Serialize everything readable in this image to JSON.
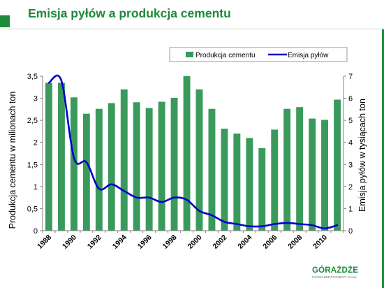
{
  "slide": {
    "title": "Emisja pyłów a produkcja cementu"
  },
  "colors": {
    "accent": "#1e8a3a",
    "bar": "#3a9a5c",
    "line": "#0000cc",
    "grid": "#c8c8c8"
  },
  "logo": {
    "name": "GÓRAŻDŻE",
    "sub": "HEIDELBERGCEMENT Group"
  },
  "chart_data": {
    "type": "bar",
    "title": "",
    "x": [
      1988,
      1989,
      1990,
      1991,
      1992,
      1993,
      1994,
      1995,
      1996,
      1997,
      1998,
      1999,
      2000,
      2001,
      2002,
      2003,
      2004,
      2005,
      2006,
      2007,
      2008,
      2009,
      2010,
      2011
    ],
    "x_tick_labels": [
      "1988",
      "1990",
      "1992",
      "1994",
      "1996",
      "1998",
      "2000",
      "2002",
      "2004",
      "2006",
      "2008",
      "2010"
    ],
    "series": [
      {
        "name": "Produkcja cementu",
        "type": "bar",
        "axis": "left",
        "values": [
          3.35,
          3.35,
          3.02,
          2.65,
          2.76,
          2.89,
          3.2,
          2.91,
          2.78,
          2.92,
          3.01,
          3.5,
          3.2,
          2.76,
          2.31,
          2.2,
          2.1,
          1.87,
          2.29,
          2.76,
          2.8,
          2.54,
          2.51,
          2.97
        ]
      },
      {
        "name": "Emisja pyłów",
        "type": "line",
        "axis": "right",
        "values": [
          6.7,
          6.8,
          3.3,
          3.1,
          1.9,
          2.1,
          1.8,
          1.5,
          1.5,
          1.3,
          1.5,
          1.4,
          0.9,
          0.7,
          0.4,
          0.3,
          0.2,
          0.2,
          0.3,
          0.35,
          0.3,
          0.25,
          0.1,
          0.25
        ]
      }
    ],
    "ylabel": "Produkcja cementu w milionach ton",
    "y2label": "Emisja pyłów w tysiącach ton",
    "ylim": [
      0,
      3.5
    ],
    "y2lim": [
      0,
      7
    ],
    "yticks": [
      "0",
      "0,5",
      "1",
      "1,5",
      "2",
      "2,5",
      "3",
      "3,5"
    ],
    "y2ticks": [
      "0",
      "1",
      "2",
      "3",
      "4",
      "5",
      "6",
      "7"
    ],
    "grid": false,
    "legend_position": "top-right"
  }
}
